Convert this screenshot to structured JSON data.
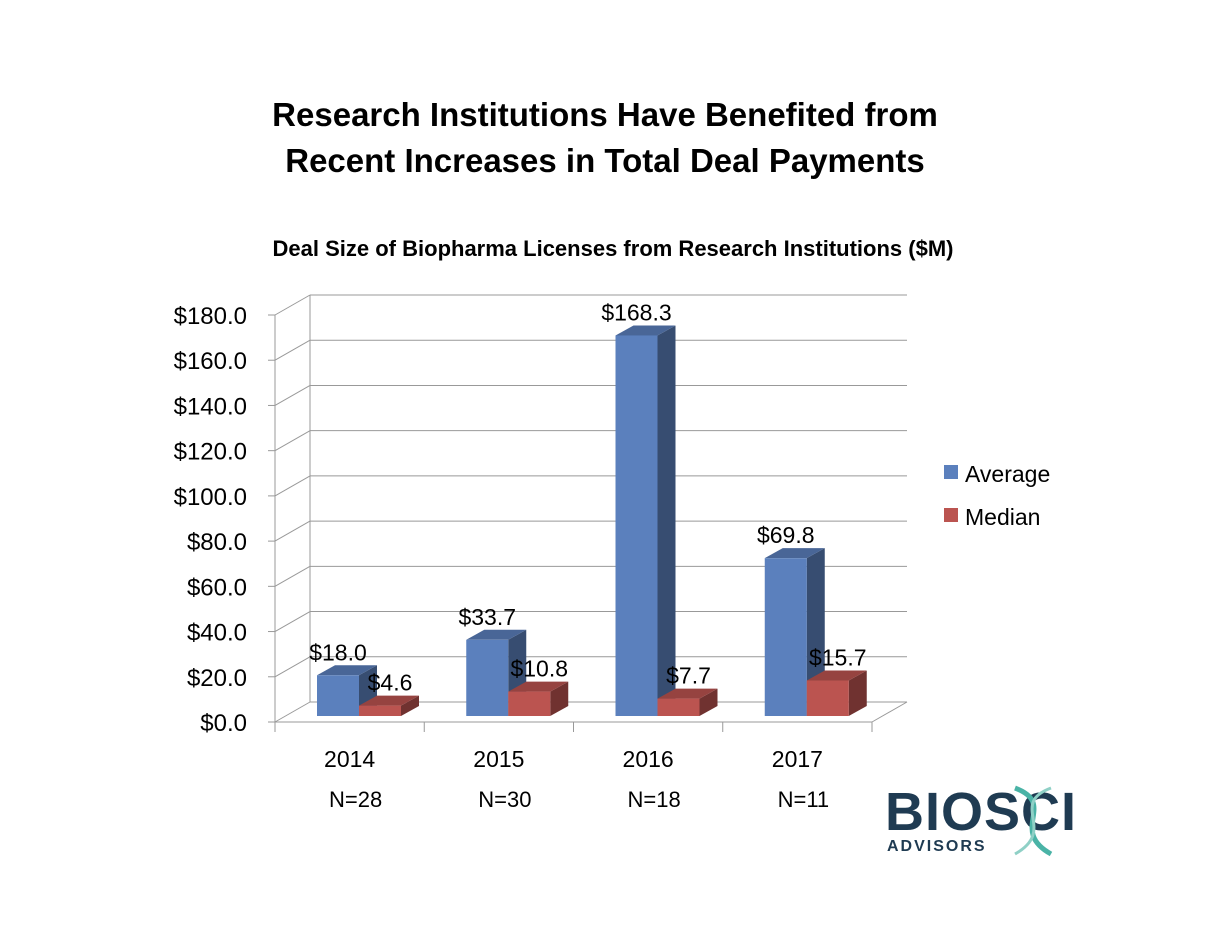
{
  "slide": {
    "title_line1": "Research Institutions Have Benefited from",
    "title_line2": "Recent Increases in Total Deal Payments"
  },
  "chart_data": {
    "type": "bar",
    "title": "Deal Size of Biopharma Licenses from Research Institutions ($M)",
    "categories": [
      "2014",
      "2015",
      "2016",
      "2017"
    ],
    "category_sublabels": [
      "N=28",
      "N=30",
      "N=18",
      "N=11"
    ],
    "series": [
      {
        "name": "Average",
        "values": [
          18.0,
          33.7,
          168.3,
          69.8
        ],
        "labels": [
          "$18.0",
          "$33.7",
          "$168.3",
          "$69.8"
        ],
        "color": "#5b80bd"
      },
      {
        "name": "Median",
        "values": [
          4.6,
          10.8,
          7.7,
          15.7
        ],
        "labels": [
          "$4.6",
          "$10.8",
          "$7.7",
          "$15.7"
        ],
        "color": "#bb5450"
      }
    ],
    "ylim": [
      0,
      180
    ],
    "yticks": [
      0,
      20,
      40,
      60,
      80,
      100,
      120,
      140,
      160,
      180
    ],
    "ytick_labels": [
      "$0.0",
      "$20.0",
      "$40.0",
      "$60.0",
      "$80.0",
      "$100.0",
      "$120.0",
      "$140.0",
      "$160.0",
      "$180.0"
    ],
    "grid": true,
    "legend_position": "right",
    "style": "3d-clustered-column"
  },
  "logo": {
    "name": "BIOSCI",
    "sub": "ADVISORS",
    "color_dark": "#1f3b52",
    "color_teal": "#4ab3a6"
  }
}
